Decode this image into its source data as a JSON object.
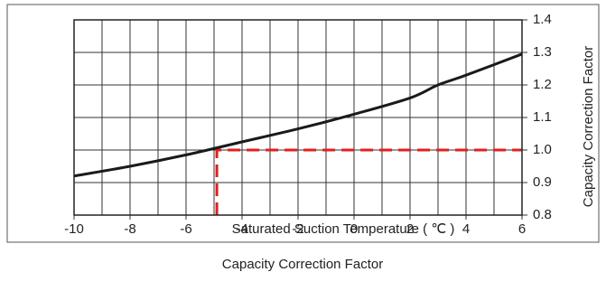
{
  "chart_data": {
    "type": "line",
    "x_label": "Saturated Suction Temperature ( ℃ )",
    "y_label": "Capacity Correction Factor",
    "caption": "Capacity Correction Factor",
    "x": [
      -10,
      -8,
      -6,
      -4,
      -2,
      0,
      2,
      3,
      4,
      6
    ],
    "series": [
      {
        "name": "Capacity Correction Factor",
        "color": "#1a1a1a",
        "values": [
          0.92,
          0.95,
          0.985,
          1.025,
          1.065,
          1.11,
          1.16,
          1.2,
          1.23,
          1.295
        ]
      }
    ],
    "guide": {
      "x": -4.9,
      "y": 1.0,
      "color": "#e02020"
    },
    "xlim": [
      -10,
      6
    ],
    "xticks": [
      -10,
      -8,
      -6,
      -4,
      -2,
      0,
      2,
      4,
      6
    ],
    "xgrid": [
      -9,
      -7,
      -5,
      -3,
      -1,
      1,
      3,
      5
    ],
    "ylim": [
      0.8,
      1.4
    ],
    "yticks": [
      {
        "value": 0.8,
        "label": "0.8"
      },
      {
        "value": 0.9,
        "label": "0.9"
      },
      {
        "value": 1.0,
        "label": "1.0"
      },
      {
        "value": 1.1,
        "label": "1.1"
      },
      {
        "value": 1.2,
        "label": "1.2"
      },
      {
        "value": 1.3,
        "label": "1.3"
      },
      {
        "value": 1.4,
        "label": "1.4"
      }
    ],
    "y_axis_side": "right",
    "grid": true
  }
}
